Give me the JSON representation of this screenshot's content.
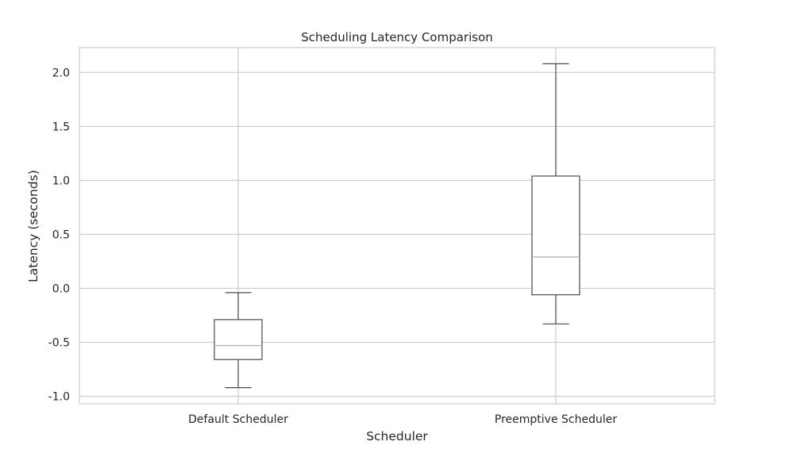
{
  "chart_data": {
    "type": "box",
    "title": "Scheduling Latency Comparison",
    "xlabel": "Scheduler",
    "ylabel": "Latency (seconds)",
    "categories": [
      "Default Scheduler",
      "Preemptive Scheduler"
    ],
    "boxes": [
      {
        "name": "Default Scheduler",
        "whisker_low": -0.92,
        "q1": -0.66,
        "median": -0.53,
        "q3": -0.29,
        "whisker_high": -0.04
      },
      {
        "name": "Preemptive Scheduler",
        "whisker_low": -0.33,
        "q1": -0.06,
        "median": 0.29,
        "q3": 1.04,
        "whisker_high": 2.08
      }
    ],
    "ylim": [
      -1.07,
      2.23
    ],
    "yticks": [
      -1.0,
      -0.5,
      0.0,
      0.5,
      1.0,
      1.5,
      2.0
    ],
    "ytick_labels": [
      "-1.0",
      "-0.5",
      "0.0",
      "0.5",
      "1.0",
      "1.5",
      "2.0"
    ],
    "grid": true,
    "colors": {
      "grid": "#cccccc",
      "spine": "#cccccc",
      "box": "#4a4a4a",
      "median": "#b0b0b0",
      "text": "#262626"
    }
  }
}
